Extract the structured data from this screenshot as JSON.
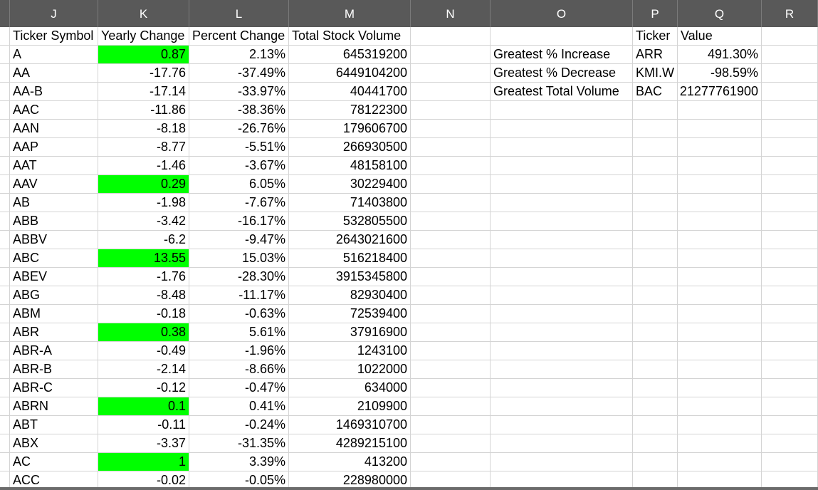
{
  "columns": [
    "J",
    "K",
    "L",
    "M",
    "N",
    "O",
    "P",
    "Q",
    "R"
  ],
  "headers": {
    "ticker": "Ticker Symbol",
    "yearly": "Yearly Change",
    "percent": "Percent Change",
    "volume": "Total Stock Volume"
  },
  "rows": [
    {
      "t": "A",
      "y": "0.87",
      "p": "2.13%",
      "v": "645319200",
      "pos": true
    },
    {
      "t": "AA",
      "y": "-17.76",
      "p": "-37.49%",
      "v": "6449104200",
      "pos": false
    },
    {
      "t": "AA-B",
      "y": "-17.14",
      "p": "-33.97%",
      "v": "40441700",
      "pos": false
    },
    {
      "t": "AAC",
      "y": "-11.86",
      "p": "-38.36%",
      "v": "78122300",
      "pos": false
    },
    {
      "t": "AAN",
      "y": "-8.18",
      "p": "-26.76%",
      "v": "179606700",
      "pos": false
    },
    {
      "t": "AAP",
      "y": "-8.77",
      "p": "-5.51%",
      "v": "266930500",
      "pos": false
    },
    {
      "t": "AAT",
      "y": "-1.46",
      "p": "-3.67%",
      "v": "48158100",
      "pos": false
    },
    {
      "t": "AAV",
      "y": "0.29",
      "p": "6.05%",
      "v": "30229400",
      "pos": true
    },
    {
      "t": "AB",
      "y": "-1.98",
      "p": "-7.67%",
      "v": "71403800",
      "pos": false
    },
    {
      "t": "ABB",
      "y": "-3.42",
      "p": "-16.17%",
      "v": "532805500",
      "pos": false
    },
    {
      "t": "ABBV",
      "y": "-6.2",
      "p": "-9.47%",
      "v": "2643021600",
      "pos": false
    },
    {
      "t": "ABC",
      "y": "13.55",
      "p": "15.03%",
      "v": "516218400",
      "pos": true
    },
    {
      "t": "ABEV",
      "y": "-1.76",
      "p": "-28.30%",
      "v": "3915345800",
      "pos": false
    },
    {
      "t": "ABG",
      "y": "-8.48",
      "p": "-11.17%",
      "v": "82930400",
      "pos": false
    },
    {
      "t": "ABM",
      "y": "-0.18",
      "p": "-0.63%",
      "v": "72539400",
      "pos": false
    },
    {
      "t": "ABR",
      "y": "0.38",
      "p": "5.61%",
      "v": "37916900",
      "pos": true
    },
    {
      "t": "ABR-A",
      "y": "-0.49",
      "p": "-1.96%",
      "v": "1243100",
      "pos": false
    },
    {
      "t": "ABR-B",
      "y": "-2.14",
      "p": "-8.66%",
      "v": "1022000",
      "pos": false
    },
    {
      "t": "ABR-C",
      "y": "-0.12",
      "p": "-0.47%",
      "v": "634000",
      "pos": false
    },
    {
      "t": "ABRN",
      "y": "0.1",
      "p": "0.41%",
      "v": "2109900",
      "pos": true
    },
    {
      "t": "ABT",
      "y": "-0.11",
      "p": "-0.24%",
      "v": "1469310700",
      "pos": false
    },
    {
      "t": "ABX",
      "y": "-3.37",
      "p": "-31.35%",
      "v": "4289215100",
      "pos": false
    },
    {
      "t": "AC",
      "y": "1",
      "p": "3.39%",
      "v": "413200",
      "pos": true
    },
    {
      "t": "ACC",
      "y": "-0.02",
      "p": "-0.05%",
      "v": "228980000",
      "pos": false
    }
  ],
  "summary": {
    "ticker_header": "Ticker",
    "value_header": "Value",
    "rows": [
      {
        "label": "Greatest % Increase",
        "ticker": "ARR",
        "value": "491.30%"
      },
      {
        "label": "Greatest % Decrease",
        "ticker": "KMI.W",
        "value": "-98.59%"
      },
      {
        "label": "Greatest Total Volume",
        "ticker": "BAC",
        "value": "21277761900"
      }
    ]
  },
  "colors": {
    "positive_fill": "#00ff00",
    "header_bg": "#595959"
  }
}
